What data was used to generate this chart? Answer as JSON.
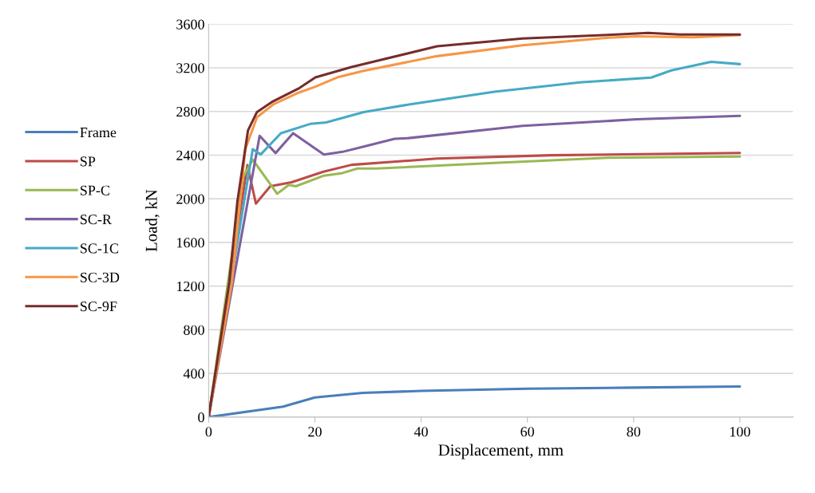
{
  "chart_data": {
    "type": "line",
    "xlabel": "Displacement, mm",
    "ylabel": "Load, kN",
    "xlim": [
      0,
      110
    ],
    "xticks": [
      0,
      20,
      40,
      60,
      80,
      100
    ],
    "ylim": [
      0,
      3600
    ],
    "yticks": [
      0,
      400,
      800,
      1200,
      1600,
      2000,
      2400,
      2800,
      3200,
      3600
    ],
    "grid": "y",
    "legend": "left",
    "marker": "none",
    "line_style": "solid",
    "series": [
      {
        "name": "Frame",
        "color": "#4a7ebb",
        "x": [
          0,
          14,
          20,
          29,
          40,
          60,
          80,
          100
        ],
        "values": [
          0,
          95,
          180,
          221,
          240,
          260,
          270,
          280
        ]
      },
      {
        "name": "SP",
        "color": "#be4b48",
        "x": [
          0,
          7.3,
          8.9,
          11.6,
          15.6,
          21.6,
          26.9,
          43,
          64.5,
          100
        ],
        "values": [
          0,
          2309,
          1956,
          2115,
          2151,
          2248,
          2311,
          2368,
          2399,
          2420
        ]
      },
      {
        "name": "SP-C",
        "color": "#98b954",
        "x": [
          0,
          6.5,
          8.3,
          12.9,
          15.1,
          16.4,
          21.7,
          25.2,
          28,
          31.5,
          53.8,
          75.2,
          100
        ],
        "values": [
          0,
          2200,
          2358,
          2046,
          2127,
          2115,
          2212,
          2236,
          2277,
          2277,
          2329,
          2376,
          2387
        ]
      },
      {
        "name": "SC-R",
        "color": "#7d60a0",
        "x": [
          0,
          9.6,
          12.6,
          15.9,
          21.7,
          25.2,
          29.2,
          35,
          37.6,
          59.1,
          80.6,
          100
        ],
        "values": [
          0,
          2577,
          2419,
          2601,
          2406,
          2430,
          2479,
          2550,
          2556,
          2668,
          2728,
          2759
        ]
      },
      {
        "name": "SC-1C",
        "color": "#46aac5",
        "x": [
          0,
          8.3,
          9.8,
          13.6,
          19.1,
          22.1,
          29.2,
          37.7,
          53.8,
          69.9,
          83.3,
          87.1,
          94.6,
          100
        ],
        "values": [
          0,
          2455,
          2406,
          2601,
          2686,
          2700,
          2795,
          2864,
          2981,
          3066,
          3111,
          3176,
          3255,
          3234
        ]
      },
      {
        "name": "SC-3D",
        "color": "#f79646",
        "x": [
          0,
          4.4,
          6.9,
          9.1,
          12.3,
          16.6,
          20.1,
          24.2,
          29.2,
          43,
          59.1,
          75.2,
          80.6,
          91.3,
          100
        ],
        "values": [
          0,
          1240,
          2455,
          2747,
          2869,
          2966,
          3027,
          3112,
          3173,
          3307,
          3406,
          3476,
          3489,
          3480,
          3500
        ]
      },
      {
        "name": "SC-9F",
        "color": "#772c2a",
        "x": [
          0,
          3.9,
          5.4,
          7.4,
          9.1,
          12.1,
          17.1,
          20.1,
          26.9,
          43,
          59.1,
          75.2,
          82.7,
          88.7,
          100
        ],
        "values": [
          0,
          1240,
          1970,
          2625,
          2795,
          2893,
          3015,
          3112,
          3207,
          3398,
          3468,
          3502,
          3520,
          3505,
          3505
        ]
      }
    ]
  }
}
